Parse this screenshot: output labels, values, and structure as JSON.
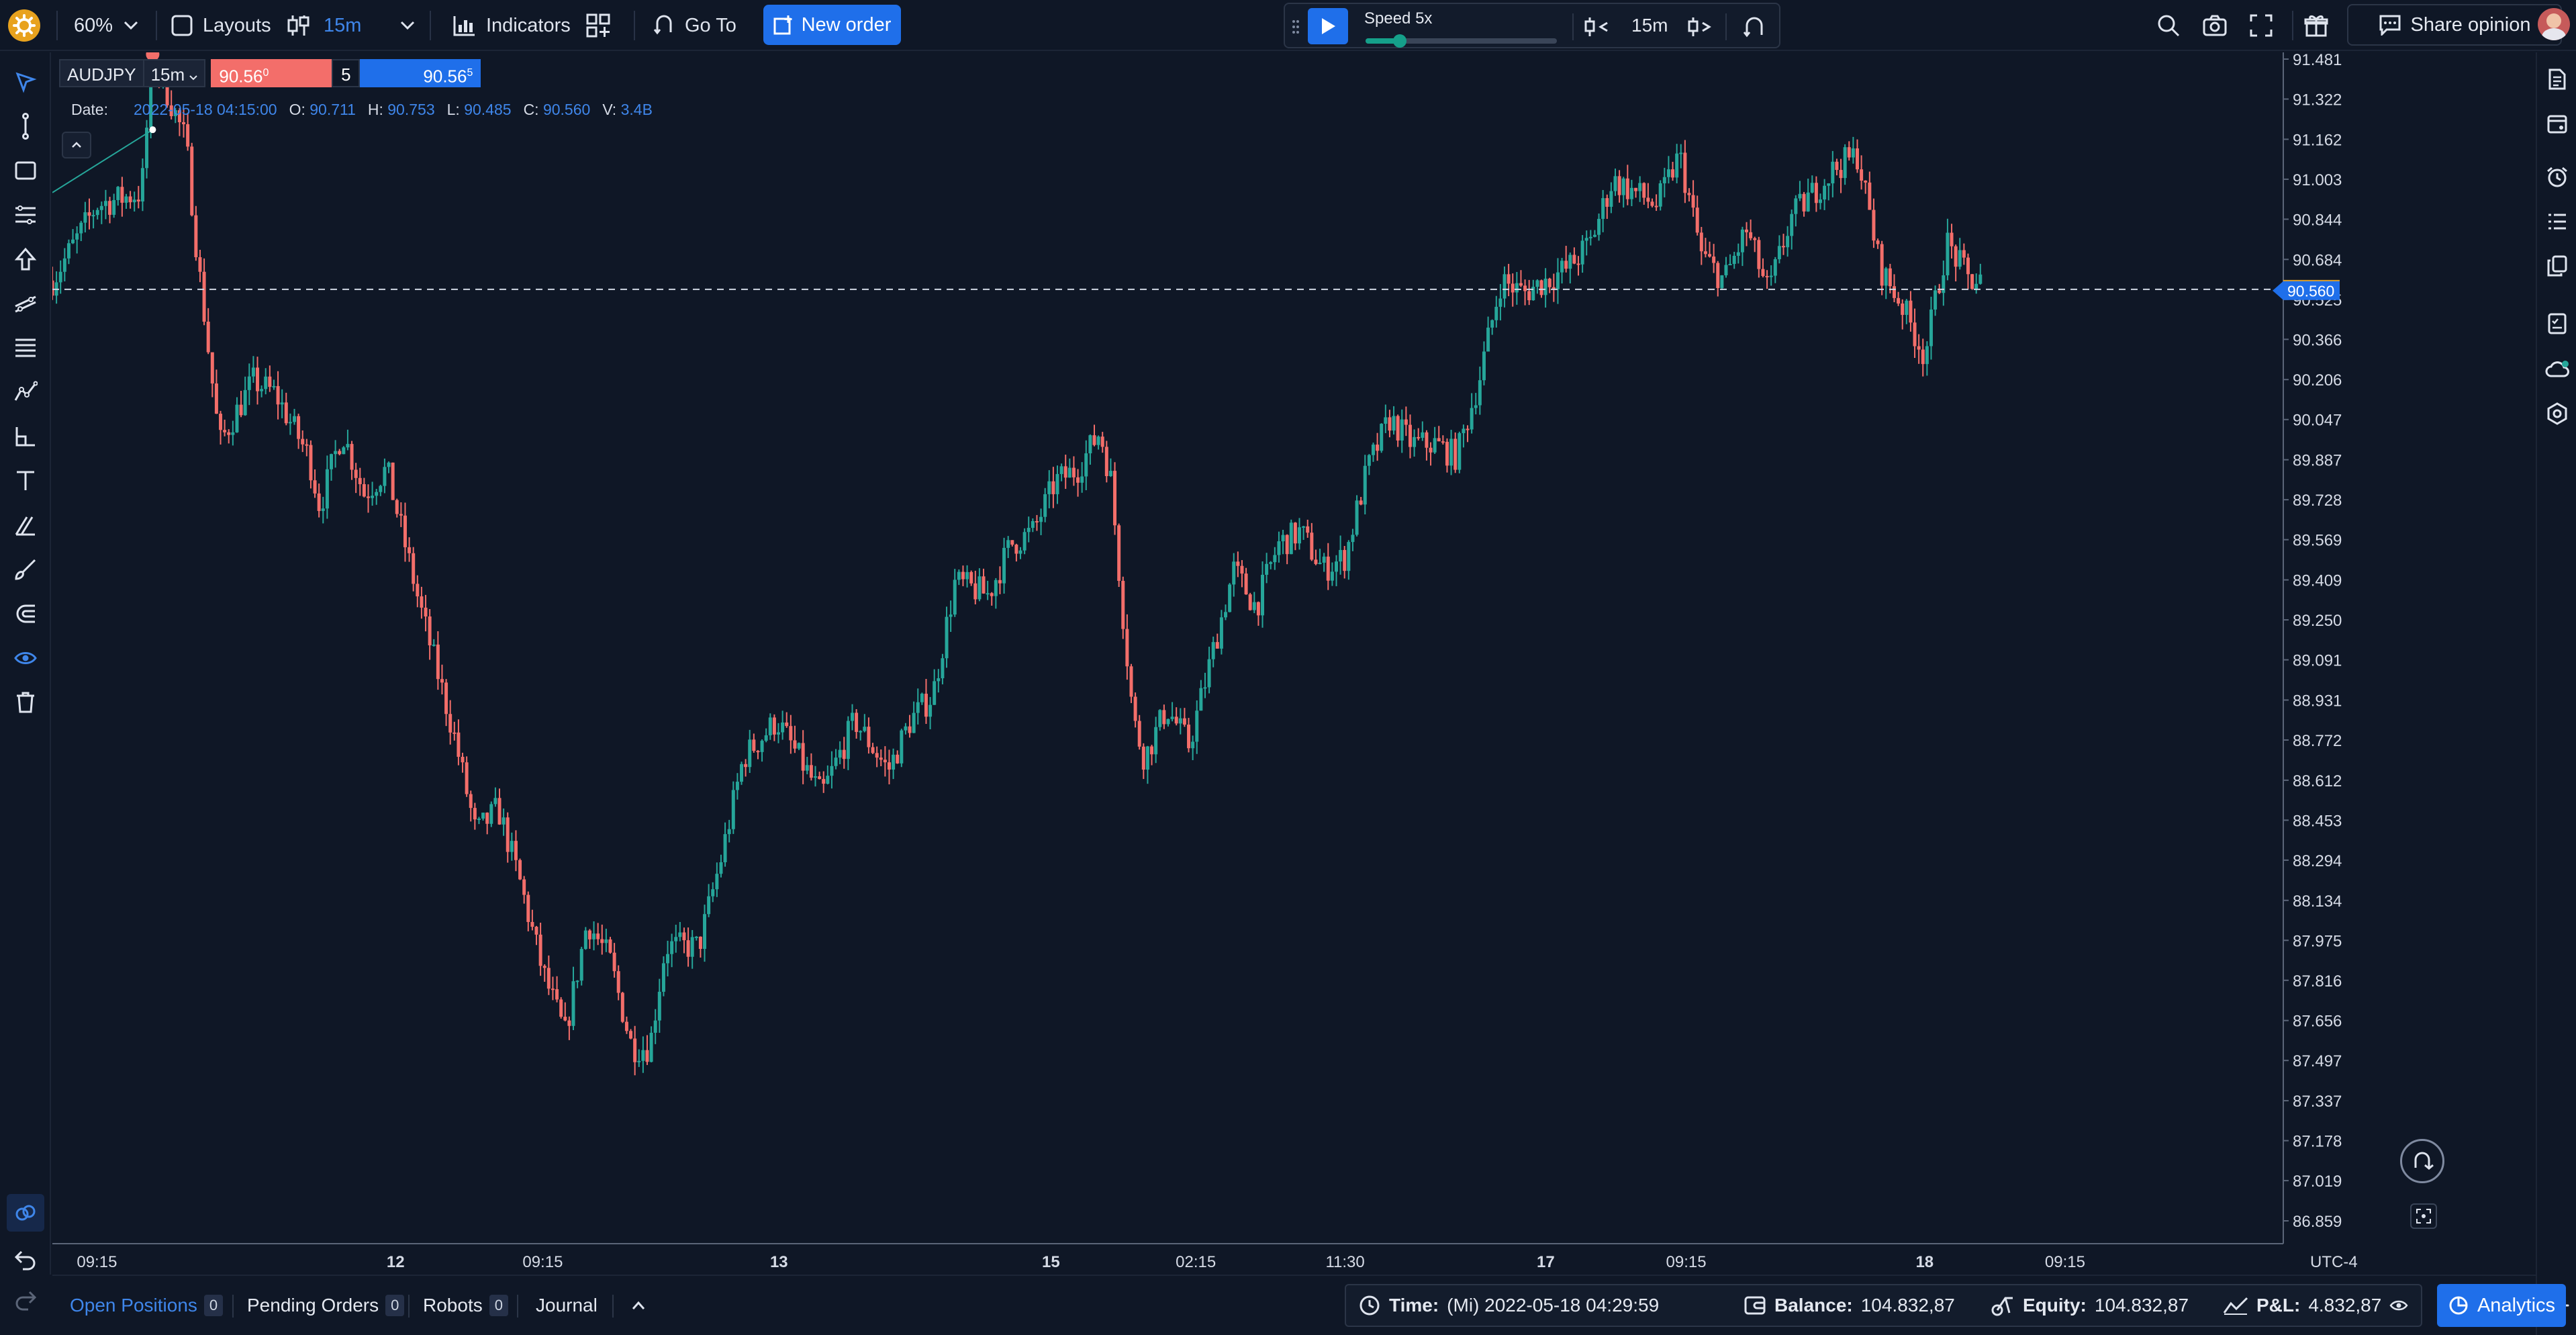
{
  "toolbar": {
    "zoom": "60%",
    "layouts_label": "Layouts",
    "timeframe": "15m",
    "indicators_label": "Indicators",
    "goto_label": "Go To",
    "new_order_label": "New order",
    "share_label": "Share opinion"
  },
  "player": {
    "speed_label": "Speed 5x",
    "speed_level": 0.18,
    "timeframe": "15m"
  },
  "symbol_panel": {
    "symbol": "AUDJPY",
    "timeframe": "15m",
    "sell_price": "90.56",
    "sell_sup": "0",
    "lot": "5",
    "buy_price": "90.56",
    "buy_sup": "5"
  },
  "ohlc": {
    "date_label": "Date:",
    "date_value": "2022-05-18 04:15:00",
    "o_label": "O:",
    "o_value": "90.711",
    "h_label": "H:",
    "h_value": "90.753",
    "l_label": "L:",
    "l_value": "90.485",
    "c_label": "C:",
    "c_value": "90.560",
    "v_label": "V:",
    "v_value": "3.4B"
  },
  "chart_data": {
    "type": "candlestick",
    "symbol": "AUDJPY",
    "ylim": [
      86.859,
      91.481
    ],
    "y_ticks": [
      "91.481",
      "91.322",
      "91.162",
      "91.003",
      "90.844",
      "90.684",
      "90.525",
      "90.366",
      "90.206",
      "90.047",
      "89.887",
      "89.728",
      "89.569",
      "89.409",
      "89.250",
      "89.091",
      "88.931",
      "88.772",
      "88.612",
      "88.453",
      "88.294",
      "88.134",
      "87.975",
      "87.816",
      "87.656",
      "87.497",
      "87.337",
      "87.178",
      "87.019",
      "86.859"
    ],
    "x_ticks": [
      {
        "label": "09:15",
        "bold": false,
        "at": 0.02
      },
      {
        "label": "12",
        "bold": true,
        "at": 0.154
      },
      {
        "label": "09:15",
        "bold": false,
        "at": 0.22
      },
      {
        "label": "13",
        "bold": true,
        "at": 0.326
      },
      {
        "label": "15",
        "bold": true,
        "at": 0.448
      },
      {
        "label": "02:15",
        "bold": false,
        "at": 0.513
      },
      {
        "label": "11:30",
        "bold": false,
        "at": 0.58
      },
      {
        "label": "17",
        "bold": true,
        "at": 0.67
      },
      {
        "label": "09:15",
        "bold": false,
        "at": 0.733
      },
      {
        "label": "18",
        "bold": true,
        "at": 0.84
      },
      {
        "label": "09:15",
        "bold": false,
        "at": 0.903
      }
    ],
    "timezone": "UTC-4",
    "ask_line": "90.565",
    "bid_line": "90.560",
    "close_path": [
      [
        0.0,
        90.6
      ],
      [
        0.02,
        90.9
      ],
      [
        0.04,
        90.95
      ],
      [
        0.045,
        91.5
      ],
      [
        0.06,
        91.15
      ],
      [
        0.065,
        90.7
      ],
      [
        0.075,
        89.95
      ],
      [
        0.09,
        90.2
      ],
      [
        0.1,
        90.15
      ],
      [
        0.115,
        89.9
      ],
      [
        0.12,
        89.7
      ],
      [
        0.13,
        90.0
      ],
      [
        0.14,
        89.75
      ],
      [
        0.15,
        89.85
      ],
      [
        0.165,
        89.3
      ],
      [
        0.18,
        88.8
      ],
      [
        0.19,
        88.4
      ],
      [
        0.2,
        88.5
      ],
      [
        0.21,
        88.2
      ],
      [
        0.22,
        87.85
      ],
      [
        0.23,
        87.6
      ],
      [
        0.24,
        88.05
      ],
      [
        0.25,
        87.9
      ],
      [
        0.26,
        87.55
      ],
      [
        0.268,
        87.55
      ],
      [
        0.275,
        87.95
      ],
      [
        0.29,
        87.95
      ],
      [
        0.3,
        88.3
      ],
      [
        0.31,
        88.7
      ],
      [
        0.325,
        88.85
      ],
      [
        0.335,
        88.7
      ],
      [
        0.345,
        88.55
      ],
      [
        0.36,
        88.85
      ],
      [
        0.375,
        88.65
      ],
      [
        0.385,
        88.85
      ],
      [
        0.395,
        88.95
      ],
      [
        0.405,
        89.4
      ],
      [
        0.42,
        89.35
      ],
      [
        0.43,
        89.55
      ],
      [
        0.44,
        89.6
      ],
      [
        0.45,
        89.8
      ],
      [
        0.46,
        89.85
      ],
      [
        0.47,
        90.0
      ],
      [
        0.475,
        89.8
      ],
      [
        0.48,
        89.3
      ],
      [
        0.485,
        88.85
      ],
      [
        0.49,
        88.7
      ],
      [
        0.5,
        88.9
      ],
      [
        0.51,
        88.75
      ],
      [
        0.52,
        89.1
      ],
      [
        0.53,
        89.45
      ],
      [
        0.54,
        89.3
      ],
      [
        0.55,
        89.55
      ],
      [
        0.56,
        89.6
      ],
      [
        0.57,
        89.45
      ],
      [
        0.58,
        89.5
      ],
      [
        0.59,
        89.85
      ],
      [
        0.6,
        90.05
      ],
      [
        0.61,
        89.95
      ],
      [
        0.62,
        89.95
      ],
      [
        0.63,
        89.9
      ],
      [
        0.64,
        90.2
      ],
      [
        0.65,
        90.6
      ],
      [
        0.66,
        90.55
      ],
      [
        0.67,
        90.6
      ],
      [
        0.68,
        90.65
      ],
      [
        0.69,
        90.75
      ],
      [
        0.7,
        91.0
      ],
      [
        0.71,
        90.95
      ],
      [
        0.72,
        90.9
      ],
      [
        0.73,
        91.1
      ],
      [
        0.74,
        90.7
      ],
      [
        0.75,
        90.6
      ],
      [
        0.76,
        90.8
      ],
      [
        0.77,
        90.55
      ],
      [
        0.78,
        90.85
      ],
      [
        0.79,
        90.95
      ],
      [
        0.8,
        91.05
      ],
      [
        0.81,
        91.1
      ],
      [
        0.82,
        90.65
      ],
      [
        0.83,
        90.5
      ],
      [
        0.84,
        90.3
      ],
      [
        0.85,
        90.75
      ],
      [
        0.86,
        90.6
      ],
      [
        0.865,
        90.6
      ]
    ]
  },
  "bottom": {
    "open_positions_label": "Open Positions",
    "open_positions_count": "0",
    "pending_orders_label": "Pending Orders",
    "pending_orders_count": "0",
    "robots_label": "Robots",
    "robots_count": "0",
    "journal_label": "Journal",
    "time_label": "Time:",
    "time_value": "(Mi) 2022-05-18 04:29:59",
    "balance_label": "Balance:",
    "balance_value": "104.832,87",
    "equity_label": "Equity:",
    "equity_value": "104.832,87",
    "pnl_label": "P&L:",
    "pnl_value": "4.832,87",
    "analytics_label": "Analytics"
  },
  "colors": {
    "background": "#0f1726",
    "accent": "#1f6fea",
    "up_candle": "#26a69a",
    "down_candle": "#f36e6a",
    "ask_tag": "#e8a21e"
  }
}
